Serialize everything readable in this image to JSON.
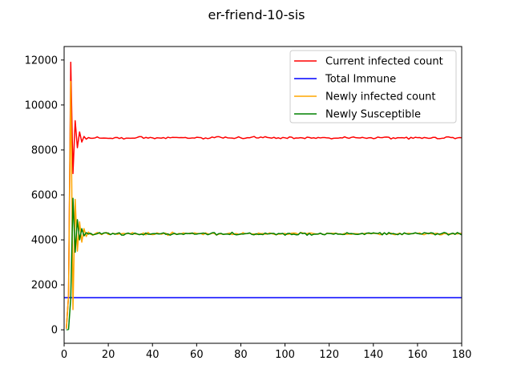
{
  "chart_data": {
    "type": "line",
    "title": "er-friend-10-sis",
    "xlabel": "",
    "ylabel": "",
    "xlim": [
      0,
      180
    ],
    "ylim": [
      -600,
      12600
    ],
    "xticks": [
      0,
      20,
      40,
      60,
      80,
      100,
      120,
      140,
      160,
      180
    ],
    "yticks": [
      0,
      2000,
      4000,
      6000,
      8000,
      10000,
      12000
    ],
    "grid": false,
    "legend_position": "top-right",
    "series": [
      {
        "name": "Current infected count",
        "color": "#ff0000",
        "transient": [
          [
            1,
            50
          ],
          [
            2,
            1500
          ],
          [
            3,
            11900
          ],
          [
            4,
            6950
          ],
          [
            5,
            9300
          ],
          [
            6,
            8100
          ],
          [
            7,
            8800
          ],
          [
            8,
            8350
          ],
          [
            9,
            8600
          ],
          [
            10,
            8480
          ],
          [
            11,
            8550
          ],
          [
            12,
            8520
          ]
        ],
        "steady_mean": 8540,
        "steady_noise": 45,
        "x_end": 180
      },
      {
        "name": "Total Immune",
        "color": "#0000ff",
        "constant": 1430,
        "x_start": 0,
        "x_end": 180
      },
      {
        "name": "Newly infected count",
        "color": "#ffa500",
        "transient": [
          [
            1,
            50
          ],
          [
            2,
            1500
          ],
          [
            3,
            11050
          ],
          [
            4,
            900
          ],
          [
            5,
            5800
          ],
          [
            6,
            3500
          ],
          [
            7,
            4800
          ],
          [
            8,
            3900
          ],
          [
            9,
            4500
          ],
          [
            10,
            4150
          ],
          [
            11,
            4350
          ],
          [
            12,
            4250
          ]
        ],
        "steady_mean": 4270,
        "steady_noise": 55,
        "x_end": 180
      },
      {
        "name": "Newly Susceptible",
        "color": "#008000",
        "transient": [
          [
            1,
            0
          ],
          [
            2,
            20
          ],
          [
            3,
            1400
          ],
          [
            4,
            5850
          ],
          [
            5,
            3450
          ],
          [
            6,
            4900
          ],
          [
            7,
            4000
          ],
          [
            8,
            4500
          ],
          [
            9,
            4180
          ],
          [
            10,
            4320
          ],
          [
            11,
            4260
          ],
          [
            12,
            4290
          ]
        ],
        "steady_mean": 4270,
        "steady_noise": 55,
        "x_end": 180
      }
    ]
  }
}
